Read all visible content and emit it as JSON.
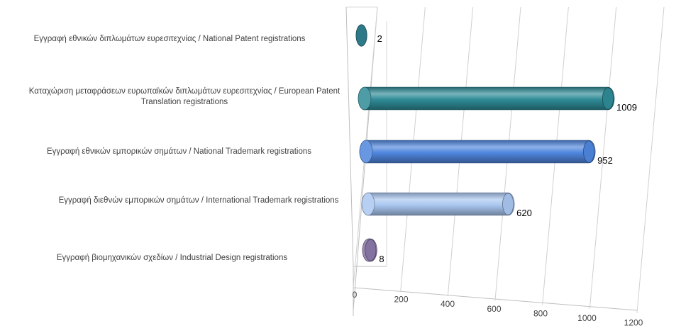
{
  "chart_data": {
    "type": "bar",
    "orientation": "horizontal",
    "style": "3d-cylinder",
    "categories": [
      "Εγγραφή  εθνικών διπλωμάτων ευρεσιτεχνίας / National Patent registrations",
      "Καταχώριση μεταφράσεων ευρωπαϊκών διπλωμάτων ευρεσιτεχνίας / European Patent Translation registrations",
      "Εγγραφή  εθνικών εμπορικών σημάτων / National Trademark registrations",
      "Εγγραφή  διεθνών εμπορικών σημάτων / International Trademark registrations",
      "Εγγραφή  βιομηχανικών σχεδίων / Industrial Design registrations"
    ],
    "values": [
      2,
      1009,
      952,
      620,
      8
    ],
    "data_labels": [
      "2",
      "1009",
      "952",
      "620",
      "8"
    ],
    "colors": [
      "#2f7f8f",
      "#2e8b96",
      "#4f86de",
      "#a9c6f0",
      "#8a78a8"
    ],
    "xlim": [
      0,
      1200
    ],
    "xticks": [
      "0",
      "200",
      "400",
      "600",
      "800",
      "1000",
      "1200"
    ],
    "grid": true,
    "legend": "none"
  }
}
